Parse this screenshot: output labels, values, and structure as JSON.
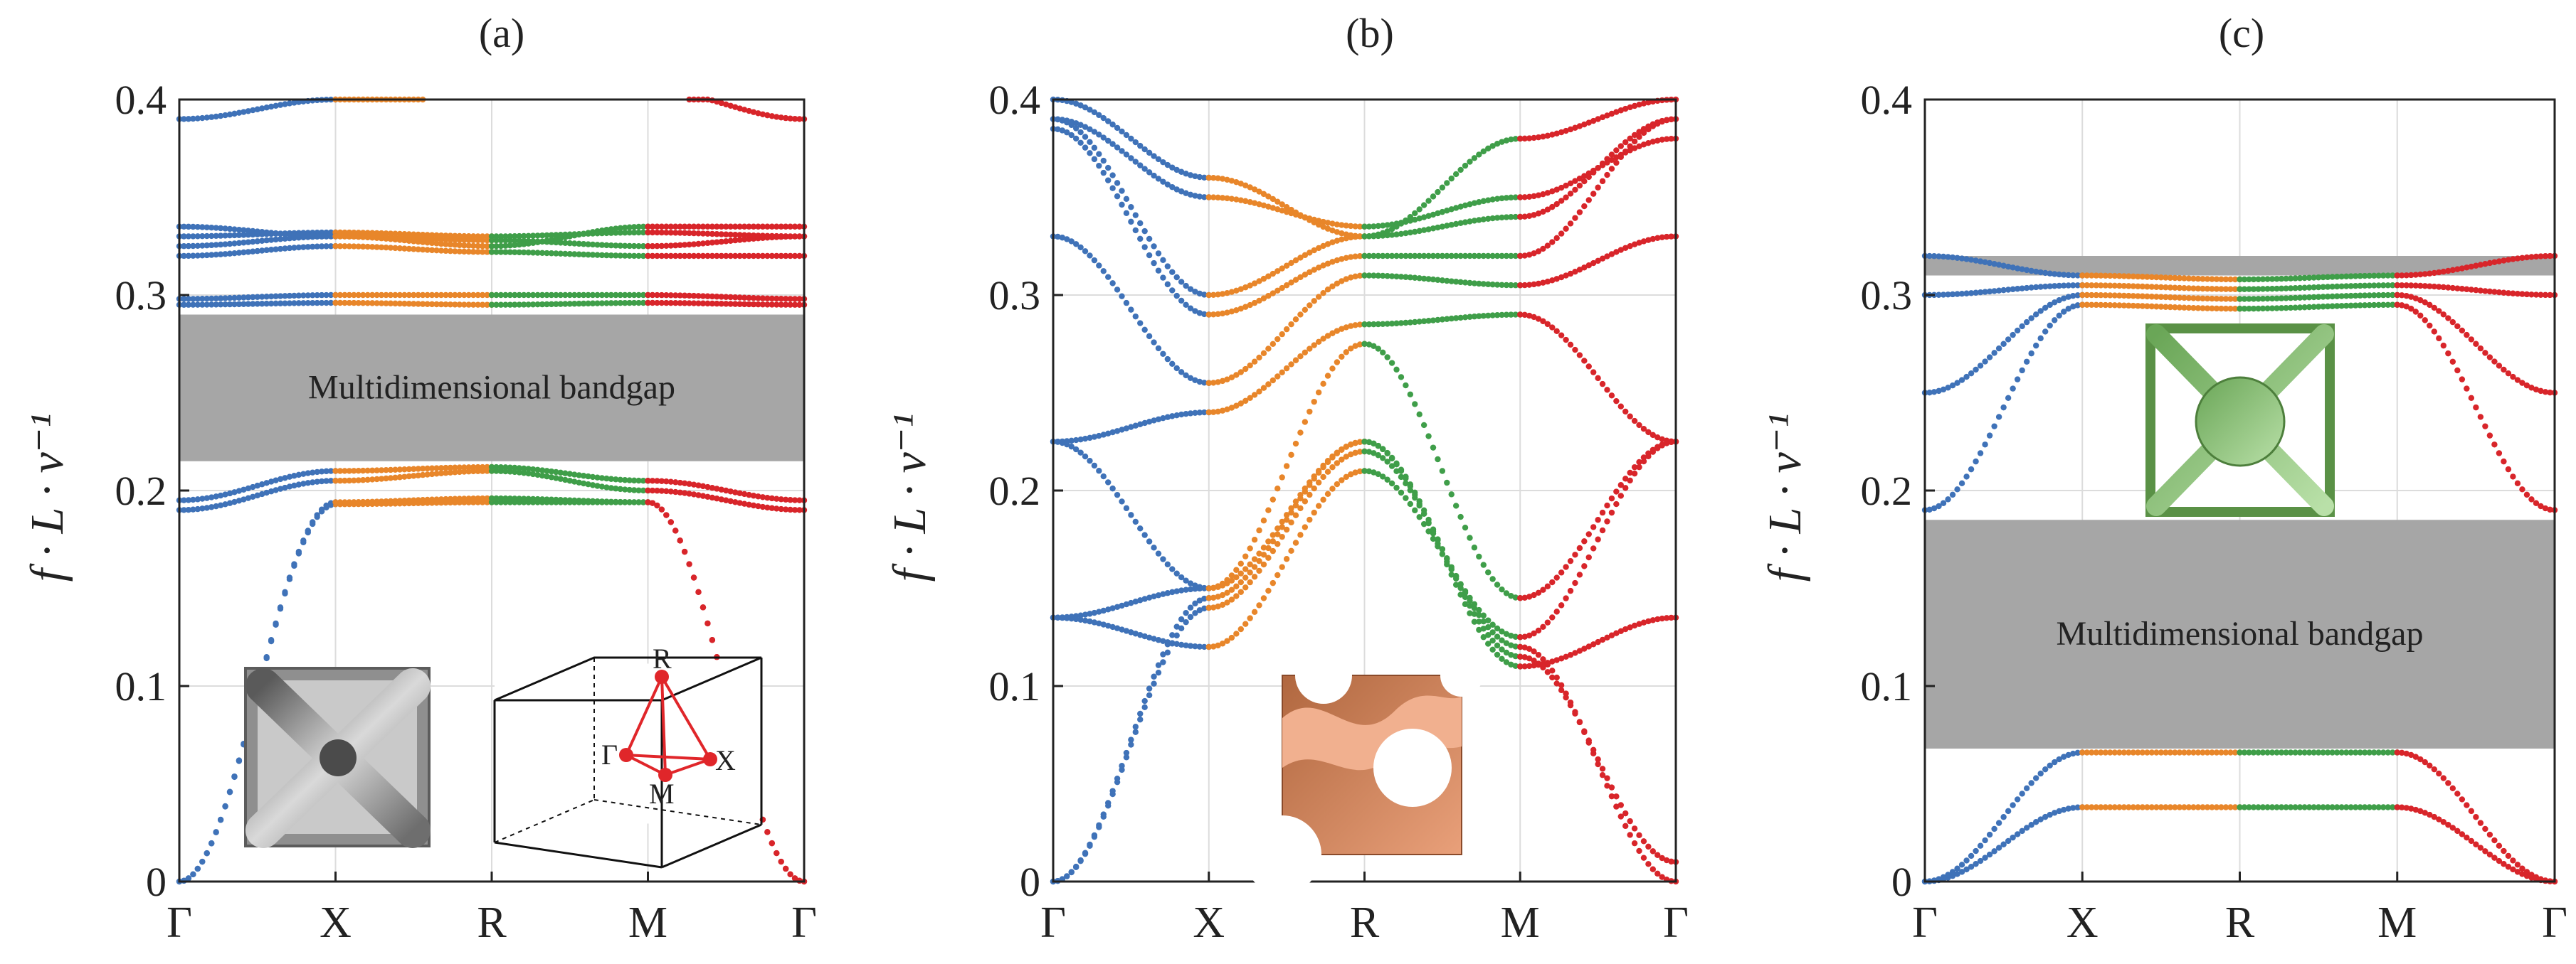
{
  "figure": {
    "band_colors": [
      "#3f72b8",
      "#e8862a",
      "#3f9e49",
      "#d8252a"
    ],
    "gap_color": "#a6a6a6"
  },
  "chart_data": [
    {
      "type": "scatter",
      "panel_label": "(a)",
      "ylabel": "f · L · v⁻¹",
      "x_ticks": [
        "Γ",
        "X",
        "R",
        "M",
        "Γ"
      ],
      "y_ticks": [
        "0",
        "0.1",
        "0.2",
        "0.3",
        "0.4"
      ],
      "ylim": [
        0,
        0.4
      ],
      "grid": true,
      "bandgaps": [
        {
          "y0": 0.215,
          "y1": 0.29,
          "label": "Multidimensional bandgap"
        }
      ],
      "bands": [
        [
          0.0,
          0.193,
          0.194,
          0.194,
          0.0
        ],
        [
          0.0,
          0.194,
          0.196,
          0.194,
          0.0
        ],
        [
          0.19,
          0.205,
          0.21,
          0.2,
          0.19
        ],
        [
          0.195,
          0.21,
          0.212,
          0.205,
          0.195
        ],
        [
          0.295,
          0.296,
          0.295,
          0.296,
          0.295
        ],
        [
          0.298,
          0.3,
          0.3,
          0.3,
          0.298
        ],
        [
          0.32,
          0.325,
          0.322,
          0.32,
          0.32
        ],
        [
          0.325,
          0.33,
          0.328,
          0.325,
          0.33
        ],
        [
          0.33,
          0.332,
          0.33,
          0.332,
          0.33
        ],
        [
          0.335,
          0.33,
          0.325,
          0.335,
          0.335
        ],
        [
          0.39,
          0.4,
          0.405,
          0.405,
          0.39
        ]
      ],
      "inset_labels": [
        "R",
        "Γ",
        "X",
        "M"
      ]
    },
    {
      "type": "scatter",
      "panel_label": "(b)",
      "ylabel": "f · L · v⁻¹",
      "x_ticks": [
        "Γ",
        "X",
        "R",
        "M",
        "Γ"
      ],
      "y_ticks": [
        "0",
        "0.1",
        "0.2",
        "0.3",
        "0.4"
      ],
      "ylim": [
        0,
        0.4
      ],
      "grid": true,
      "bandgaps": [],
      "bands": [
        [
          0.0,
          0.14,
          0.22,
          0.12,
          0.0
        ],
        [
          0.0,
          0.145,
          0.225,
          0.115,
          0.01
        ],
        [
          0.135,
          0.15,
          0.225,
          0.11,
          0.135
        ],
        [
          0.135,
          0.12,
          0.21,
          0.125,
          0.225
        ],
        [
          0.225,
          0.15,
          0.275,
          0.145,
          0.225
        ],
        [
          0.225,
          0.24,
          0.285,
          0.29,
          0.225
        ],
        [
          0.33,
          0.255,
          0.31,
          0.305,
          0.33
        ],
        [
          0.385,
          0.29,
          0.32,
          0.32,
          0.39
        ],
        [
          0.39,
          0.3,
          0.33,
          0.34,
          0.39
        ],
        [
          0.39,
          0.35,
          0.335,
          0.35,
          0.38
        ],
        [
          0.4,
          0.36,
          0.33,
          0.38,
          0.4
        ]
      ]
    },
    {
      "type": "scatter",
      "panel_label": "(c)",
      "ylabel": "f · L · v⁻¹",
      "x_ticks": [
        "Γ",
        "X",
        "R",
        "M",
        "Γ"
      ],
      "y_ticks": [
        "0",
        "0.1",
        "0.2",
        "0.3",
        "0.4"
      ],
      "ylim": [
        0,
        0.4
      ],
      "grid": true,
      "bandgaps": [
        {
          "y0": 0.068,
          "y1": 0.185,
          "label": "Multidimensional bandgap"
        },
        {
          "y0": 0.31,
          "y1": 0.32,
          "label": ""
        }
      ],
      "bands": [
        [
          0.0,
          0.038,
          0.038,
          0.038,
          0.0
        ],
        [
          0.0,
          0.066,
          0.066,
          0.066,
          0.0
        ],
        [
          0.19,
          0.295,
          0.293,
          0.295,
          0.19
        ],
        [
          0.25,
          0.3,
          0.298,
          0.3,
          0.25
        ],
        [
          0.3,
          0.305,
          0.303,
          0.305,
          0.3
        ],
        [
          0.32,
          0.31,
          0.308,
          0.31,
          0.32
        ]
      ]
    }
  ]
}
